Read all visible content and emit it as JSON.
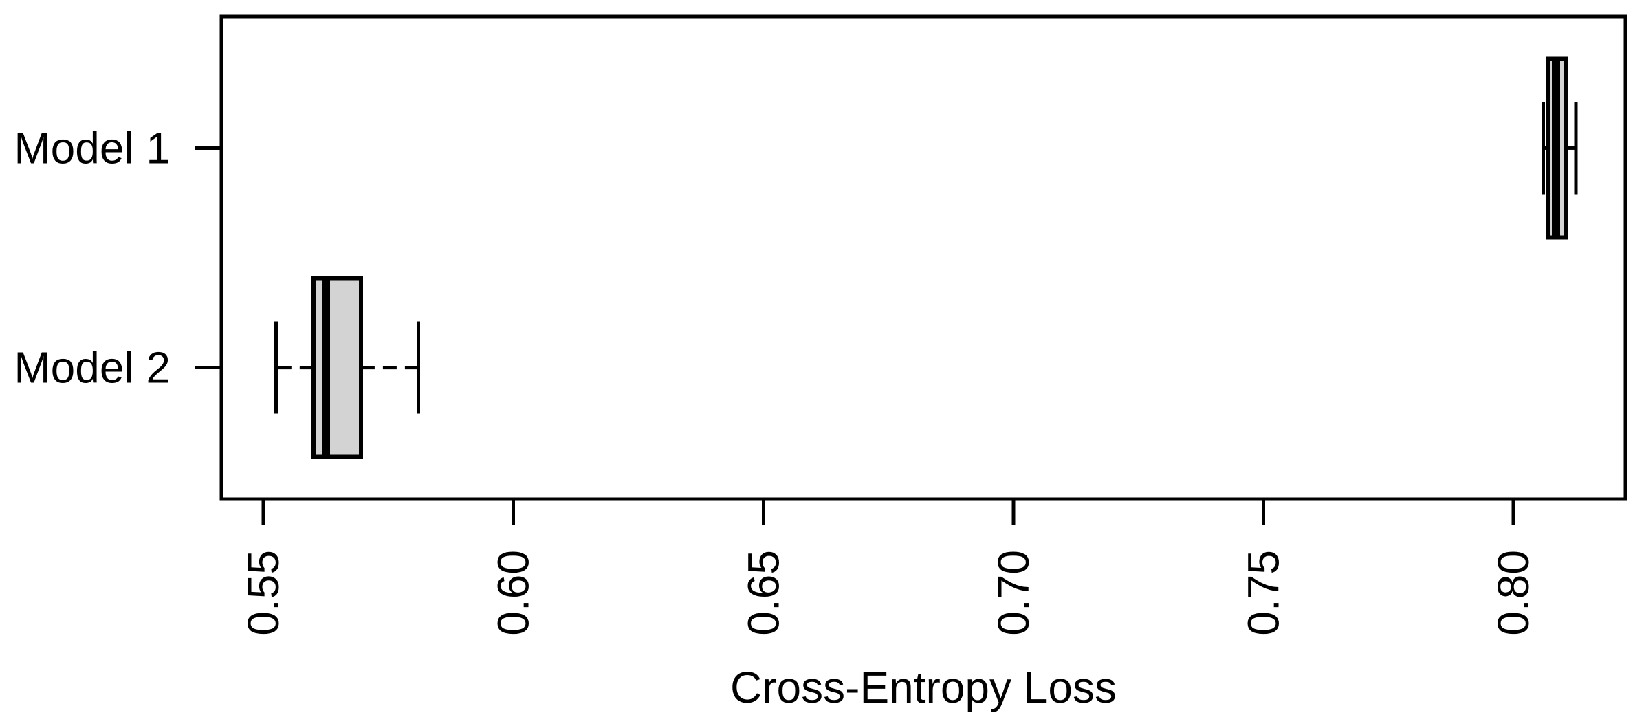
{
  "figure": {
    "background": "#ffffff"
  },
  "chart_data": {
    "type": "boxplot",
    "orientation": "horizontal",
    "title": "",
    "xlabel": "Cross-Entropy Loss",
    "ylabel": "",
    "categories": [
      "Model 1",
      "Model 2"
    ],
    "series": [
      {
        "name": "Model 1",
        "whisker_low": 0.806,
        "q1": 0.807,
        "median": 0.8085,
        "q3": 0.8105,
        "whisker_high": 0.8125
      },
      {
        "name": "Model 2",
        "whisker_low": 0.5525,
        "q1": 0.56,
        "median": 0.5625,
        "q3": 0.5695,
        "whisker_high": 0.581
      }
    ],
    "x_ticks": [
      "0.55",
      "0.60",
      "0.65",
      "0.70",
      "0.75",
      "0.80"
    ],
    "x_tick_values": [
      0.55,
      0.6,
      0.65,
      0.7,
      0.75,
      0.8
    ],
    "xlim": [
      0.5416,
      0.8224
    ],
    "x_tick_label_rotation_deg": 90,
    "whisker_line_style": "dashed",
    "grid": false,
    "legend": null,
    "colors": {
      "box_fill": "#d3d3d3",
      "line": "#000000",
      "text": "#000000"
    }
  }
}
